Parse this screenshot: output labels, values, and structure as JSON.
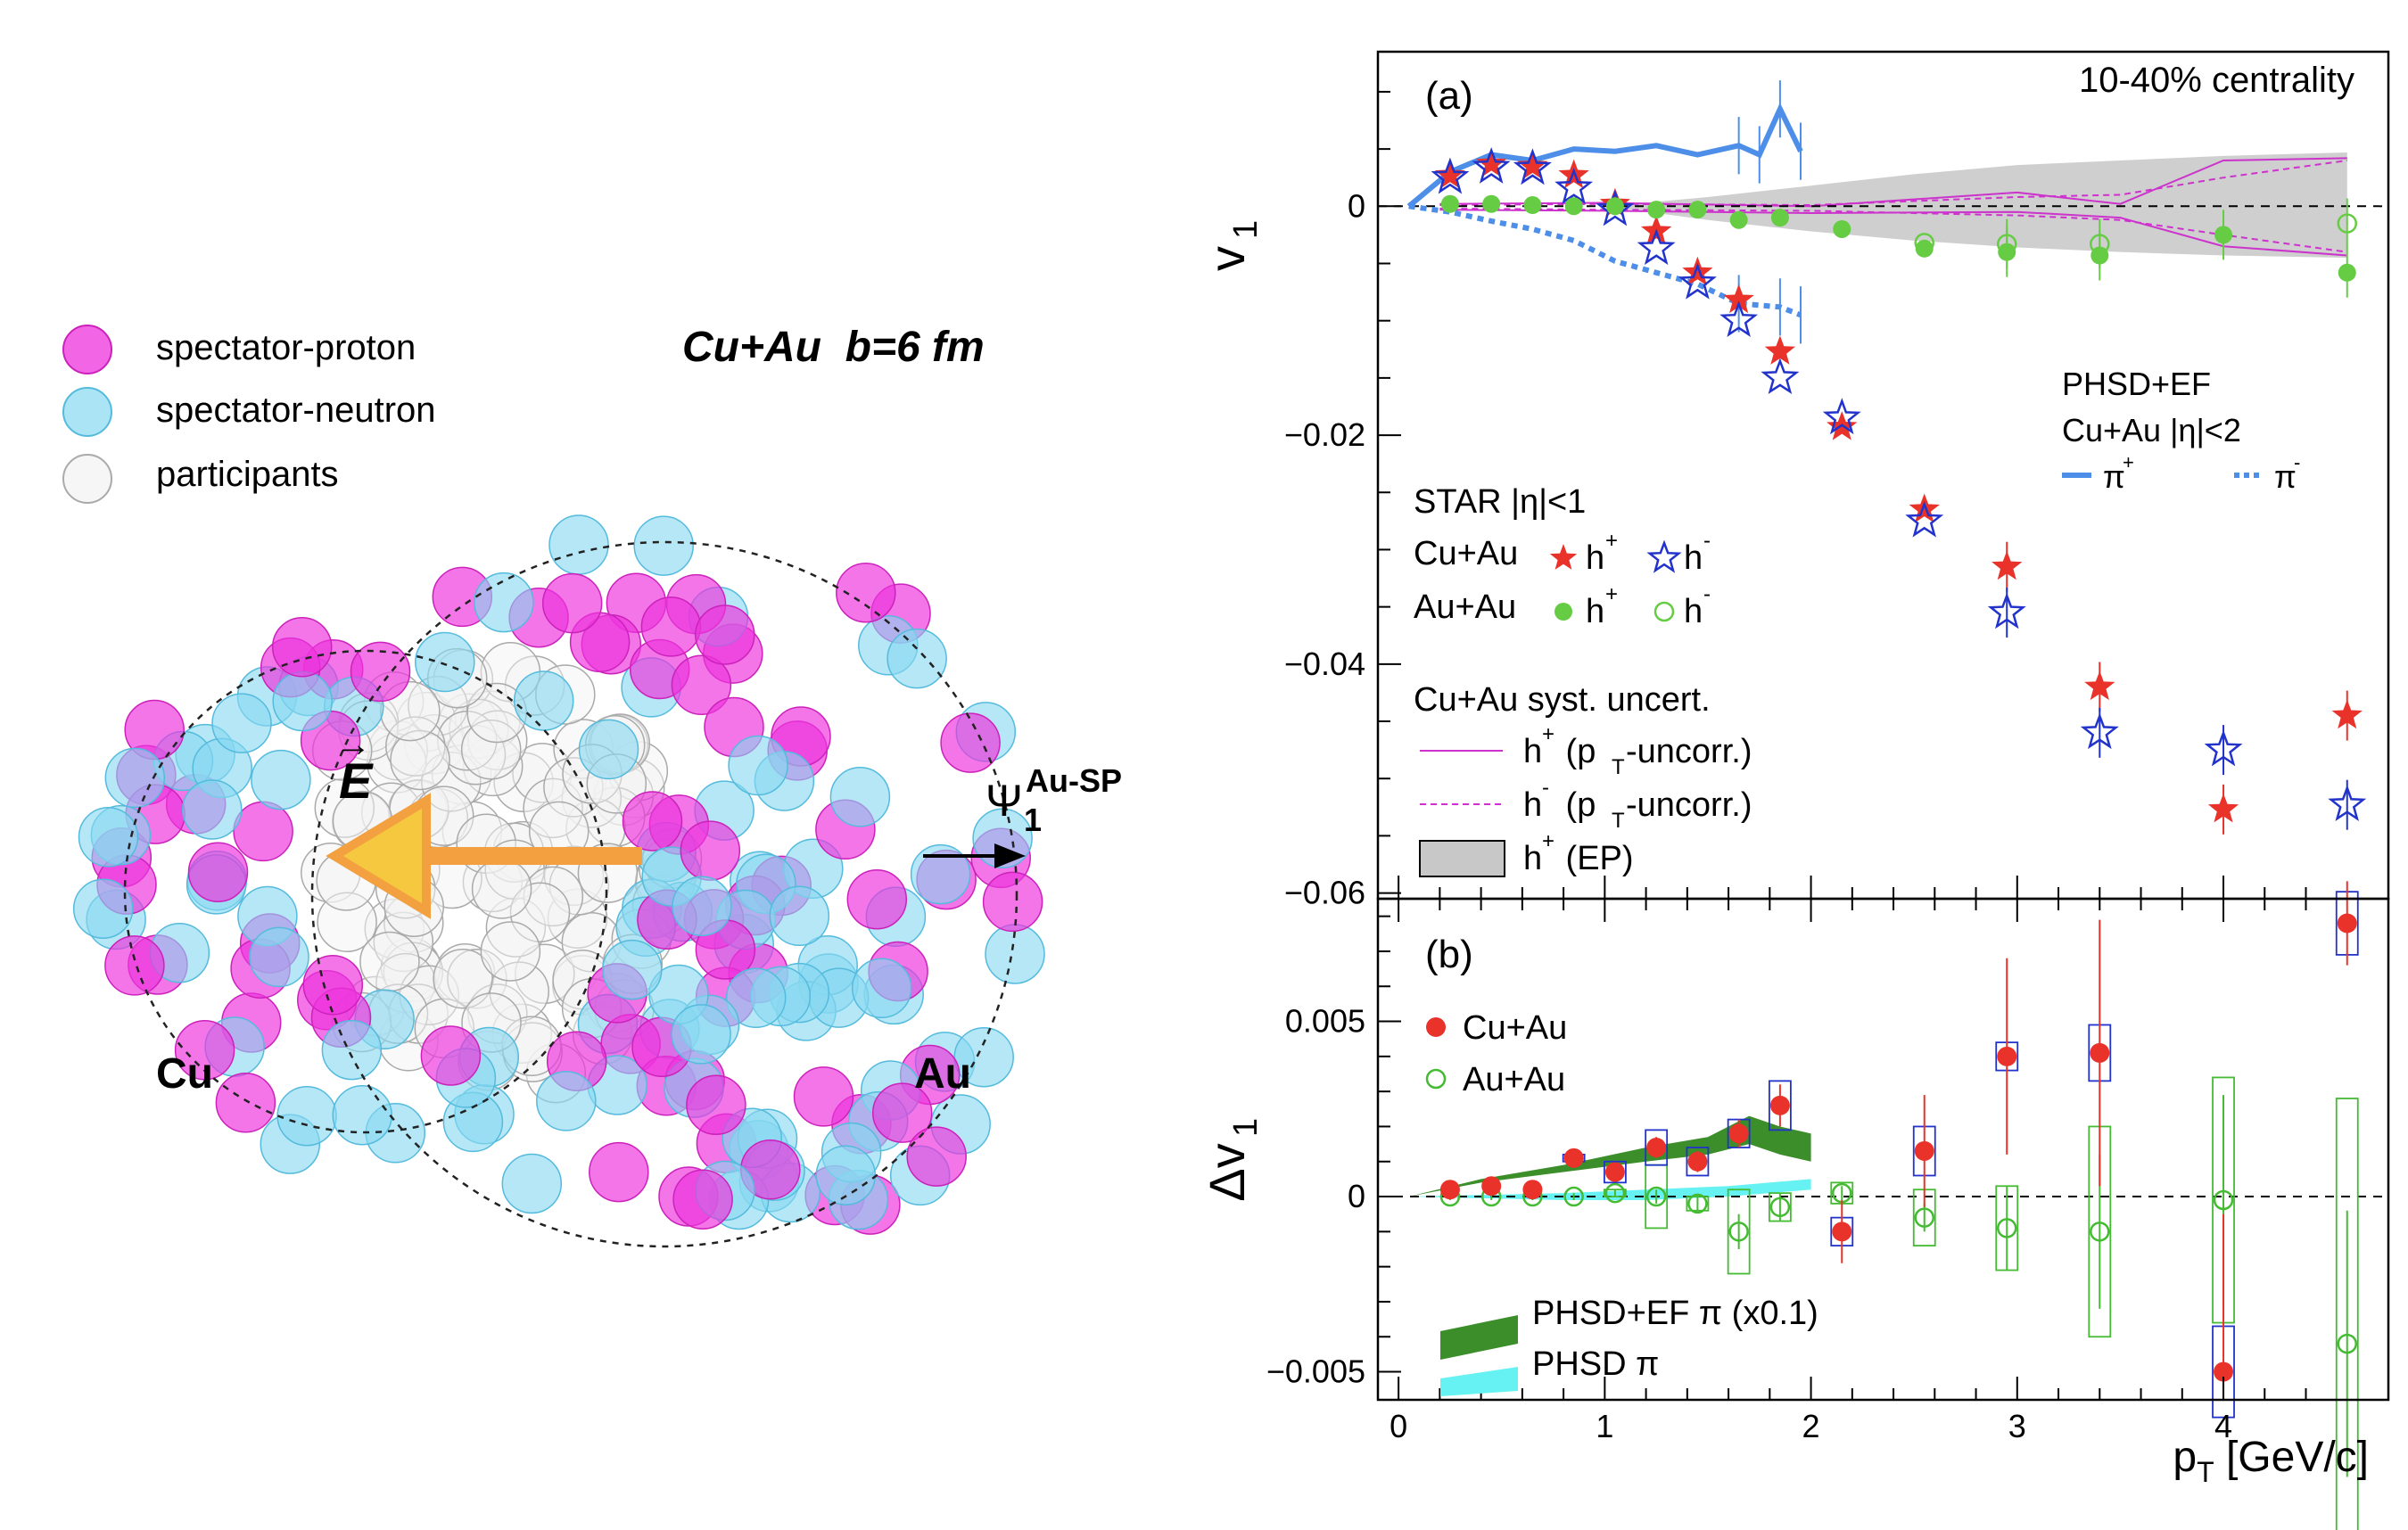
{
  "illustration": {
    "title": "Cu+Au  b=6 fm",
    "legend": [
      "spectator-proton",
      "spectator-neutron",
      "participants"
    ],
    "nucleus_left": "Cu",
    "nucleus_right": "Au",
    "field_label": "E",
    "plane_label": "Ψ",
    "plane_sub": "1",
    "plane_sup": "Au-SP",
    "colors": {
      "proton": "#ee33dd",
      "neutron": "#88d8f0",
      "participant": "#cccccc",
      "arrow": "#f2a040",
      "arrowhead": "#f5c840"
    }
  },
  "chart_data": [
    {
      "type": "scatter",
      "panel": "(a)",
      "annotation": "10-40% centrality",
      "xlabel": "p_T [GeV/c]",
      "ylabel": "v_1",
      "xlim": [
        -0.1,
        4.8
      ],
      "ylim": [
        -0.0605,
        0.0135
      ],
      "yticks": [
        0,
        -0.02,
        -0.04,
        -0.06
      ],
      "ytick_labels": [
        "0",
        "−0.02",
        "−0.04",
        "−0.06"
      ],
      "series": [
        {
          "name": "Cu+Au h+",
          "marker": "star-filled",
          "color": "#e8322a",
          "x": [
            0.25,
            0.45,
            0.65,
            0.85,
            1.05,
            1.25,
            1.45,
            1.65,
            1.85,
            2.15,
            2.55,
            2.95,
            3.4,
            4.0,
            4.6
          ],
          "y": [
            0.0027,
            0.0037,
            0.0035,
            0.0027,
            0.0002,
            -0.0022,
            -0.0058,
            -0.0082,
            -0.0127,
            -0.0193,
            -0.0265,
            -0.0315,
            -0.042,
            -0.0527,
            -0.0445
          ]
        },
        {
          "name": "Cu+Au h-",
          "marker": "star-open",
          "color": "#2233cc",
          "x": [
            0.25,
            0.45,
            0.65,
            0.85,
            1.05,
            1.25,
            1.45,
            1.65,
            1.85,
            2.15,
            2.55,
            2.95,
            3.4,
            4.0,
            4.6
          ],
          "y": [
            0.0025,
            0.0034,
            0.0033,
            0.0016,
            -0.0003,
            -0.0037,
            -0.0067,
            -0.01,
            -0.015,
            -0.0185,
            -0.0275,
            -0.0355,
            -0.046,
            -0.0475,
            -0.0523
          ]
        },
        {
          "name": "Au+Au h+",
          "marker": "circle-filled",
          "color": "#66cc44",
          "x": [
            0.25,
            0.45,
            0.65,
            0.85,
            1.05,
            1.25,
            1.45,
            1.65,
            1.85,
            2.15,
            2.55,
            2.95,
            3.4,
            4.0,
            4.6
          ],
          "y": [
            0.0002,
            0.0002,
            0.0001,
            0.0,
            0.0,
            -0.0003,
            -0.0003,
            -0.0012,
            -0.001,
            -0.002,
            -0.0037,
            -0.004,
            -0.0043,
            -0.0025,
            -0.0058
          ]
        },
        {
          "name": "Au+Au h-",
          "marker": "circle-open",
          "color": "#66cc44",
          "x": [
            2.55,
            2.95,
            3.4,
            4.6
          ],
          "y": [
            -0.0032,
            -0.0033,
            -0.0033,
            -0.0015
          ]
        }
      ],
      "models": [
        {
          "name": "PHSD+EF π+",
          "style": "solid",
          "color": "#4d8ee8",
          "x": [
            0.05,
            0.25,
            0.45,
            0.65,
            0.85,
            1.05,
            1.25,
            1.45,
            1.65,
            1.75,
            1.85,
            1.95
          ],
          "y": [
            0.0,
            0.003,
            0.0045,
            0.004,
            0.005,
            0.0048,
            0.0053,
            0.0045,
            0.0053,
            0.0045,
            0.0085,
            0.0048
          ]
        },
        {
          "name": "PHSD+EF π-",
          "style": "dotted",
          "color": "#4d8ee8",
          "x": [
            0.05,
            0.25,
            0.45,
            0.65,
            0.85,
            1.05,
            1.25,
            1.45,
            1.65,
            1.85,
            1.95
          ],
          "y": [
            0.0,
            -0.0005,
            -0.0013,
            -0.002,
            -0.003,
            -0.0048,
            -0.0058,
            -0.0068,
            -0.0085,
            -0.0088,
            -0.0095
          ]
        }
      ],
      "legend": {
        "star_title": "STAR |η|<1",
        "cuau_label": "Cu+Au",
        "auau_label": "Au+Au",
        "h_plus": "h",
        "h_minus": "h",
        "syst_title": "Cu+Au syst. uncert.",
        "syst_h_plus_a": "h",
        "syst_h_plus_b": " (p",
        "syst_h_plus_c": "-uncorr.)",
        "syst_h_minus_a": "h",
        "syst_h_minus_b": " (p",
        "syst_h_minus_c": "-uncorr.)",
        "syst_ep_a": "h",
        "syst_ep_b": " (EP)",
        "model_title": "PHSD+EF",
        "model_sub": "Cu+Au |η|<2",
        "pi_plus": "π",
        "pi_minus": "π"
      }
    },
    {
      "type": "scatter",
      "panel": "(b)",
      "xlabel": "p_T [GeV/c]",
      "ylabel": "Δv_1",
      "xlim": [
        -0.1,
        4.8
      ],
      "ylim": [
        -0.0058,
        0.0085
      ],
      "yticks": [
        0.005,
        0,
        -0.005
      ],
      "ytick_labels": [
        "0.005",
        "0",
        "−0.005"
      ],
      "xticks": [
        0,
        1,
        2,
        3,
        4
      ],
      "xtick_labels": [
        "0",
        "1",
        "2",
        "3",
        "4"
      ],
      "series": [
        {
          "name": "Cu+Au",
          "marker": "circle-filled",
          "color": "#e8322a",
          "x": [
            0.25,
            0.45,
            0.65,
            0.85,
            1.05,
            1.25,
            1.45,
            1.65,
            1.85,
            2.15,
            2.55,
            2.95,
            3.4,
            4.0,
            4.6
          ],
          "y": [
            0.0002,
            0.0003,
            0.0002,
            0.0011,
            0.0007,
            0.0014,
            0.001,
            0.0018,
            0.0026,
            -0.001,
            0.0013,
            0.004,
            0.0041,
            -0.005,
            0.0078
          ]
        },
        {
          "name": "Au+Au",
          "marker": "circle-open",
          "color": "#44bb33",
          "x": [
            0.25,
            0.45,
            0.65,
            0.85,
            1.05,
            1.25,
            1.45,
            1.65,
            1.85,
            2.15,
            2.55,
            2.95,
            3.4,
            4.0,
            4.6
          ],
          "y": [
            0.0,
            0.0,
            0.0,
            0.0,
            0.0001,
            0.0,
            -0.0002,
            -0.001,
            -0.0003,
            0.0001,
            -0.0006,
            -0.0009,
            -0.001,
            -0.0001,
            -0.0042
          ]
        }
      ],
      "legend": {
        "cuau": "Cu+Au",
        "auau": "Au+Au",
        "model_ef": "PHSD+EF π (x0.1)",
        "model_phsd": "PHSD π"
      }
    }
  ]
}
